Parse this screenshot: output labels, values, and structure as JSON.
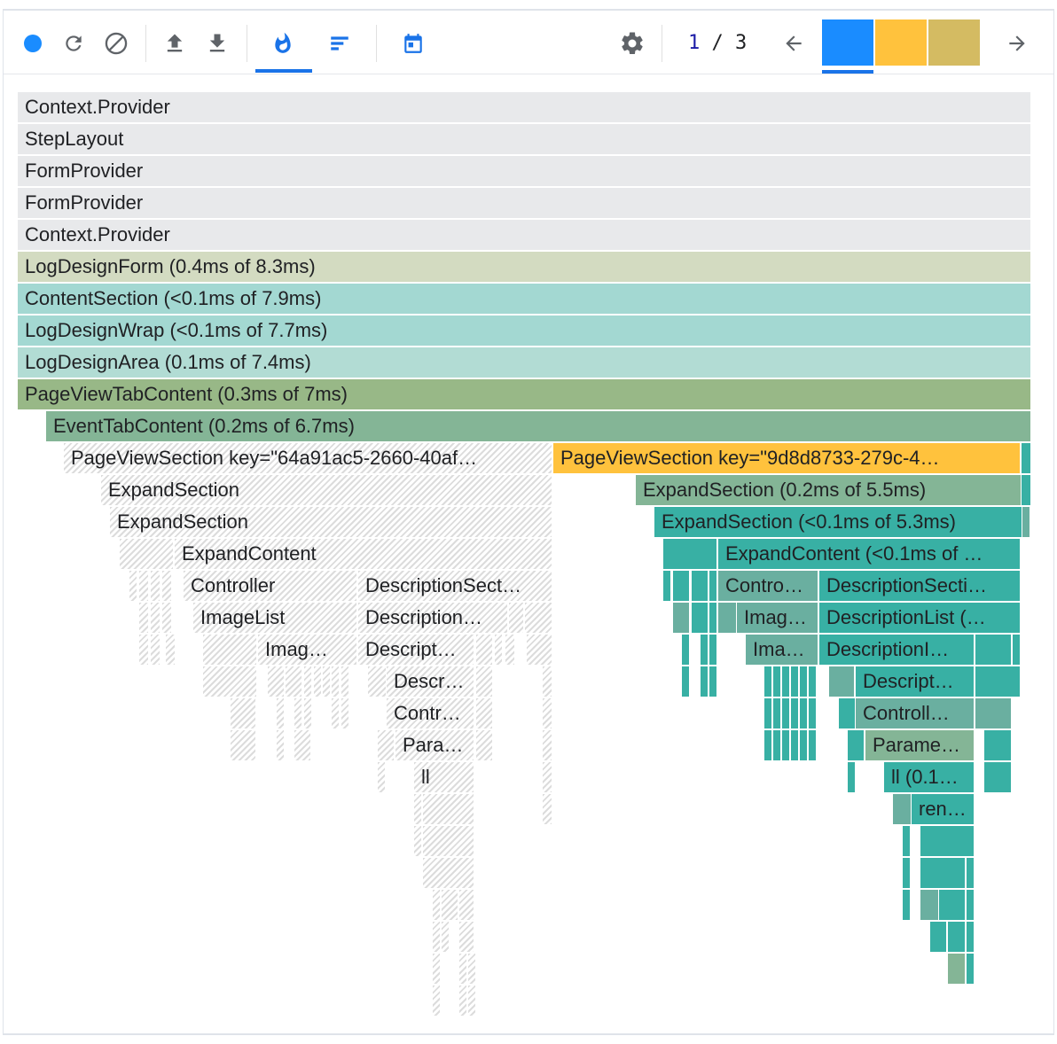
{
  "toolbar": {
    "record_label": "Start profiling",
    "reload_label": "Reload and start profiling",
    "clear_label": "Clear profiling data",
    "load_label": "Load profile",
    "save_label": "Save profile",
    "flamegraph_tab": "Flamegraph chart",
    "ranked_tab": "Ranked chart",
    "timeline_tab": "Timeline",
    "settings_label": "Settings",
    "pager_current": "1",
    "pager_sep": " / ",
    "pager_total": "3",
    "commits": [
      {
        "color": "#1a8cff",
        "selected": true
      },
      {
        "color": "#ffc23d",
        "selected": false
      },
      {
        "color": "#d4bb62",
        "selected": false
      }
    ]
  },
  "colors": {
    "accent": "#1a73e8",
    "selected_node": "#ffc23d",
    "base_gray": "#e8e9eb",
    "olive_light": "#d3dbc1",
    "teal_light": "#a3d8d2",
    "teal_mid": "#b2dcd4",
    "green_mid": "#98b887",
    "green_dark": "#84b596",
    "teal": "#38b0a4",
    "teal_alt": "#6aafa0"
  },
  "flamegraph": {
    "nodes": [
      "Context.Provider",
      "StepLayout",
      "FormProvider",
      "FormProvider",
      "Context.Provider",
      "LogDesignForm (0.4ms of 8.3ms)",
      "ContentSection (<0.1ms of 7.9ms)",
      "LogDesignWrap (<0.1ms of 7.7ms)",
      "LogDesignArea (0.1ms of 7.4ms)",
      "PageViewTabContent (0.3ms of 7ms)",
      "EventTabContent (0.2ms of 6.7ms)",
      "PageViewSection key=\"64a91ac5-2660-40af…",
      "PageViewSection key=\"9d8d8733-279c-4…",
      "ExpandSection",
      "ExpandSection (0.2ms of 5.5ms)",
      "ExpandSection",
      "ExpandSection (<0.1ms of 5.3ms)",
      "ExpandContent",
      "ExpandContent (<0.1ms of …",
      "Controller",
      "DescriptionSect…",
      "Contro…",
      "DescriptionSecti…",
      "ImageList",
      "Description…",
      "Imag…",
      "DescriptionList (…",
      "Imag…",
      "Descript…",
      "Ima…",
      "DescriptionI…",
      "Descr…",
      "Descript…",
      "Contr…",
      "Controll…",
      "Para…",
      "Parame…",
      "ll",
      "ll (0.1…",
      "ren…"
    ]
  }
}
